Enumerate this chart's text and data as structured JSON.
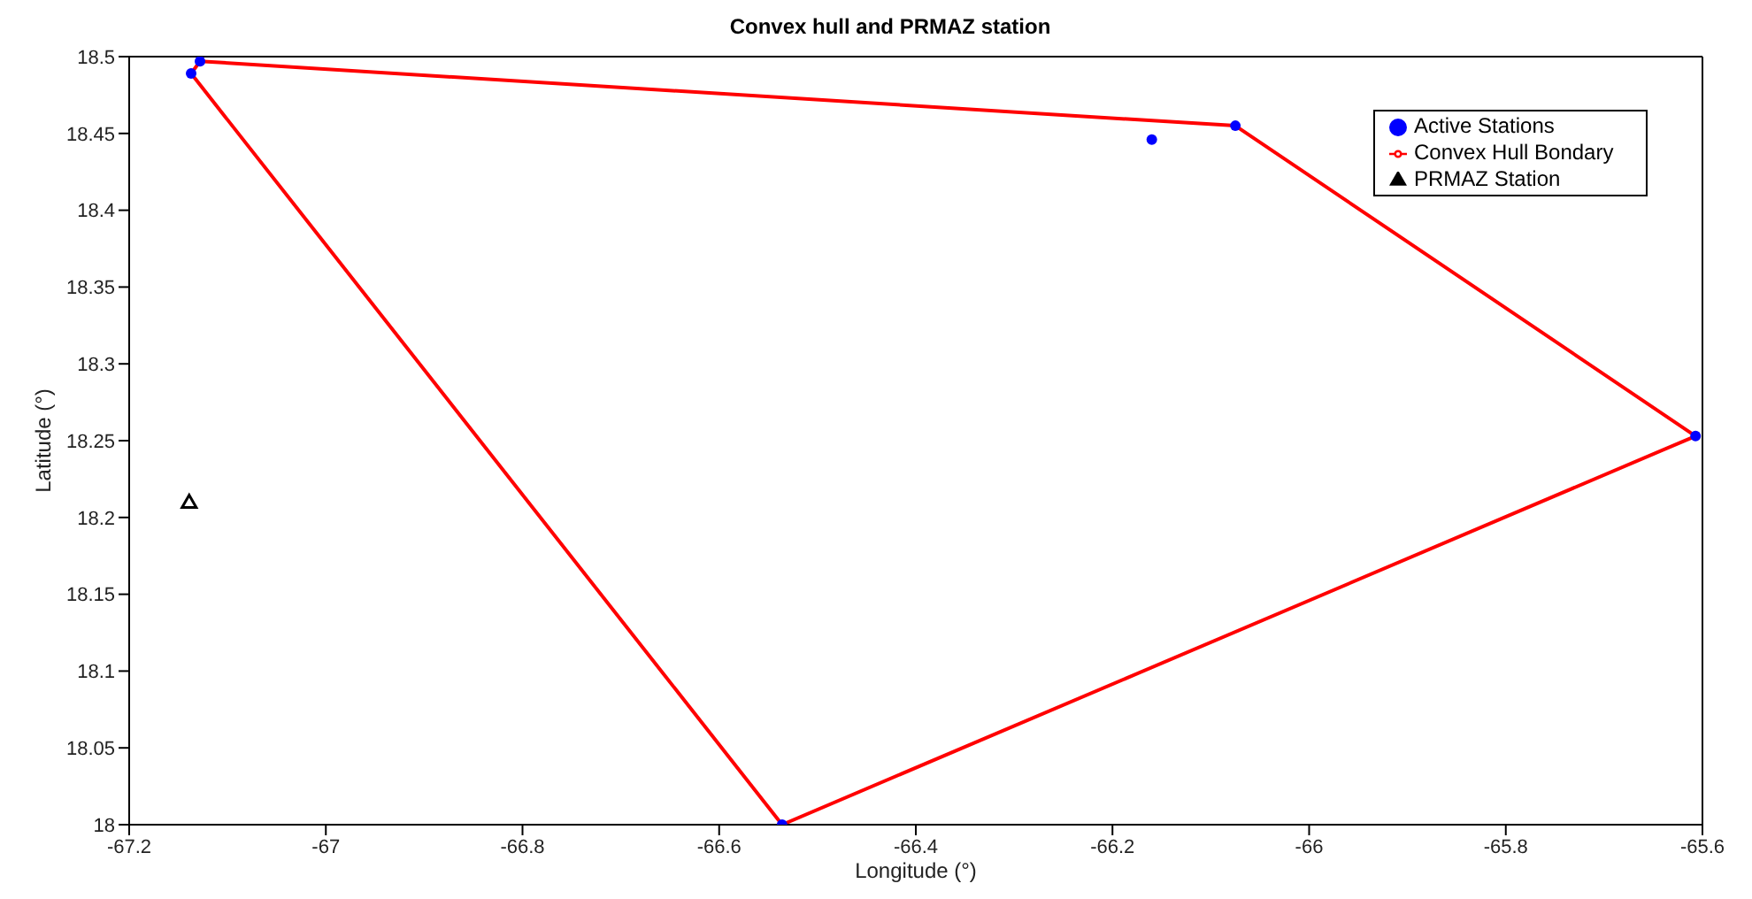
{
  "chart_data": {
    "type": "scatter",
    "title": "Convex hull and PRMAZ station",
    "xlabel": "Longitude (°)",
    "ylabel": "Latitude (°)",
    "xlim": [
      -67.2,
      -65.6
    ],
    "xticks": [
      -67.2,
      -67,
      -66.8,
      -66.6,
      -66.4,
      -66.2,
      -66,
      -65.8,
      -65.6
    ],
    "ylim": [
      18,
      18.5
    ],
    "yticks": [
      18,
      18.05,
      18.1,
      18.15,
      18.2,
      18.25,
      18.3,
      18.35,
      18.4,
      18.45,
      18.5
    ],
    "grid": false,
    "legend": "top right",
    "series": [
      {
        "name": "Active Stations",
        "type": "scatter",
        "marker": "circle",
        "color": "#0000ff",
        "x": [
          -67.137,
          -67.128,
          -66.16,
          -66.075,
          -65.607,
          -66.536
        ],
        "values": [
          18.489,
          18.497,
          18.446,
          18.455,
          18.253,
          18.0
        ]
      },
      {
        "name": "Convex Hull Bondary",
        "type": "line",
        "marker": "none",
        "color": "#ff0000",
        "x": [
          -67.137,
          -67.128,
          -66.075,
          -65.607
        ],
        "values": [
          18.489,
          18.497,
          18.455,
          18.253
        ]
      },
      {
        "type": "line",
        "marker": "none",
        "color": "#ff0000",
        "x": [
          -67.137,
          -66.536,
          -65.607
        ],
        "values": [
          18.489,
          18.0,
          18.253
        ]
      },
      {
        "name": "PRMAZ Station",
        "type": "scatter",
        "marker": "triangle",
        "color": "#000000",
        "x": [
          -67.139
        ],
        "values": [
          18.21
        ]
      }
    ]
  }
}
